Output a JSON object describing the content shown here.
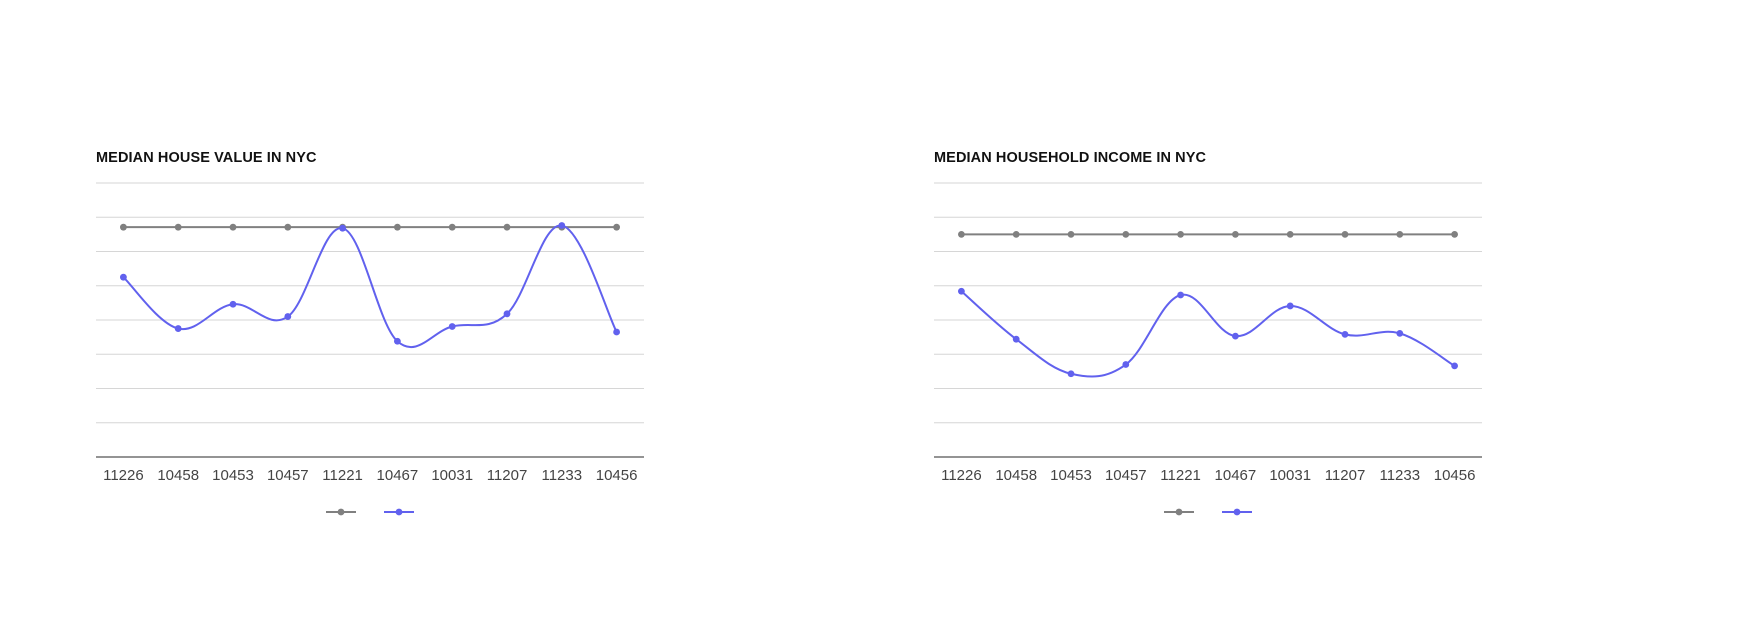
{
  "chart_data": [
    {
      "type": "line",
      "title": "MEDIAN HOUSE VALUE IN NYC",
      "xlabel": "",
      "ylabel": "",
      "categories": [
        "11226",
        "10458",
        "10453",
        "10457",
        "11221",
        "10467",
        "10031",
        "11207",
        "11233",
        "10456"
      ],
      "ylim": [
        0,
        800000
      ],
      "grid": true,
      "legend": "bottom-center",
      "series": [
        {
          "name": "",
          "color": "#808080",
          "smooth": false,
          "values": [
            671000,
            671000,
            671000,
            671000,
            671000,
            671000,
            671000,
            671000,
            671000,
            671000
          ]
        },
        {
          "name": "",
          "color": "#6161ee",
          "smooth": true,
          "values": [
            525000,
            375000,
            446000,
            410000,
            668000,
            338000,
            381000,
            418000,
            676000,
            365000
          ]
        }
      ]
    },
    {
      "type": "line",
      "title": "MEDIAN HOUSEHOLD INCOME IN NYC",
      "xlabel": "",
      "ylabel": "",
      "categories": [
        "11226",
        "10458",
        "10453",
        "10457",
        "11221",
        "10467",
        "10031",
        "11207",
        "11233",
        "10456"
      ],
      "ylim": [
        0,
        80000
      ],
      "grid": true,
      "legend": "bottom-center",
      "series": [
        {
          "name": "",
          "color": "#808080",
          "smooth": false,
          "values": [
            65000,
            65000,
            65000,
            65000,
            65000,
            65000,
            65000,
            65000,
            65000,
            65000
          ]
        },
        {
          "name": "",
          "color": "#6161ee",
          "smooth": true,
          "values": [
            48400,
            34400,
            24300,
            27000,
            47300,
            35300,
            44100,
            35800,
            36100,
            26600
          ]
        }
      ]
    }
  ]
}
